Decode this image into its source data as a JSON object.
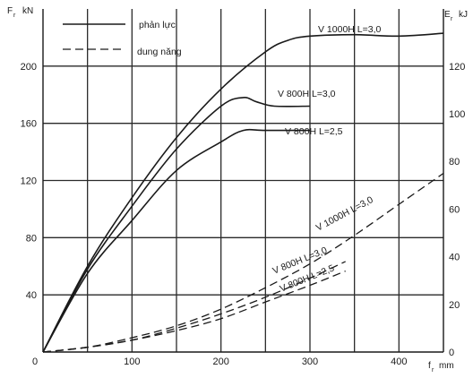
{
  "chart_data": {
    "type": "line",
    "x_axis": {
      "label": "f",
      "label_subscript": "r",
      "unit": "mm",
      "range": [
        0,
        450
      ],
      "ticks": [
        0,
        100,
        200,
        300,
        400
      ],
      "tick_labels": [
        "0",
        "100",
        "200",
        "300",
        "400"
      ],
      "grid_step": 50
    },
    "y_axis_left": {
      "label": "F",
      "label_subscript": "r",
      "unit": "kN",
      "range": [
        0,
        240
      ],
      "ticks": [
        40,
        80,
        120,
        160,
        200
      ],
      "tick_labels": [
        "40",
        "80",
        "120",
        "160",
        "200"
      ],
      "grid": true
    },
    "y_axis_right": {
      "label": "E",
      "label_subscript": "r",
      "unit": "kJ",
      "range": [
        0,
        144
      ],
      "ticks": [
        0,
        20,
        40,
        60,
        80,
        100,
        120
      ],
      "tick_labels": [
        "0",
        "20",
        "40",
        "60",
        "80",
        "100",
        "120"
      ]
    },
    "origin_label": "0",
    "legend": {
      "position": "top-left",
      "items": [
        {
          "label": "phản lực",
          "style": "solid"
        },
        {
          "label": "dung năng",
          "style": "dashed"
        }
      ]
    },
    "series": [
      {
        "name": "V 1000H  L=3,0",
        "style": "solid",
        "axis": "left",
        "x": [
          0,
          50,
          100,
          150,
          200,
          250,
          275,
          300,
          350,
          400,
          450
        ],
        "y": [
          0,
          60,
          108,
          150,
          184,
          210,
          218,
          221,
          222,
          221,
          223
        ]
      },
      {
        "name": "V 800H  L=3,0",
        "style": "solid",
        "axis": "left",
        "x": [
          0,
          50,
          100,
          150,
          200,
          225,
          240,
          260,
          300
        ],
        "y": [
          0,
          58,
          102,
          142,
          172,
          178,
          175,
          172,
          172
        ]
      },
      {
        "name": "V 800H  L=2,5",
        "style": "solid",
        "axis": "left",
        "x": [
          0,
          50,
          100,
          150,
          200,
          225,
          250,
          300
        ],
        "y": [
          0,
          55,
          92,
          127,
          147,
          155,
          155,
          155
        ]
      },
      {
        "name": "V 1000H  L=3,0",
        "style": "dashed",
        "axis": "right",
        "x": [
          0,
          50,
          100,
          150,
          200,
          250,
          300,
          350,
          400,
          450
        ],
        "y": [
          0,
          2,
          6,
          11,
          18,
          27,
          37,
          49,
          62,
          75
        ]
      },
      {
        "name": "V 800H  L=3,0",
        "style": "dashed",
        "axis": "right",
        "x": [
          0,
          50,
          100,
          150,
          200,
          250,
          300,
          340
        ],
        "y": [
          0,
          2,
          5,
          10,
          16,
          23,
          31,
          38
        ]
      },
      {
        "name": "V 800H  L=2,5",
        "style": "dashed",
        "axis": "right",
        "x": [
          0,
          50,
          100,
          150,
          200,
          250,
          300,
          340
        ],
        "y": [
          0,
          2,
          5,
          9,
          14,
          21,
          28,
          34
        ]
      }
    ]
  }
}
